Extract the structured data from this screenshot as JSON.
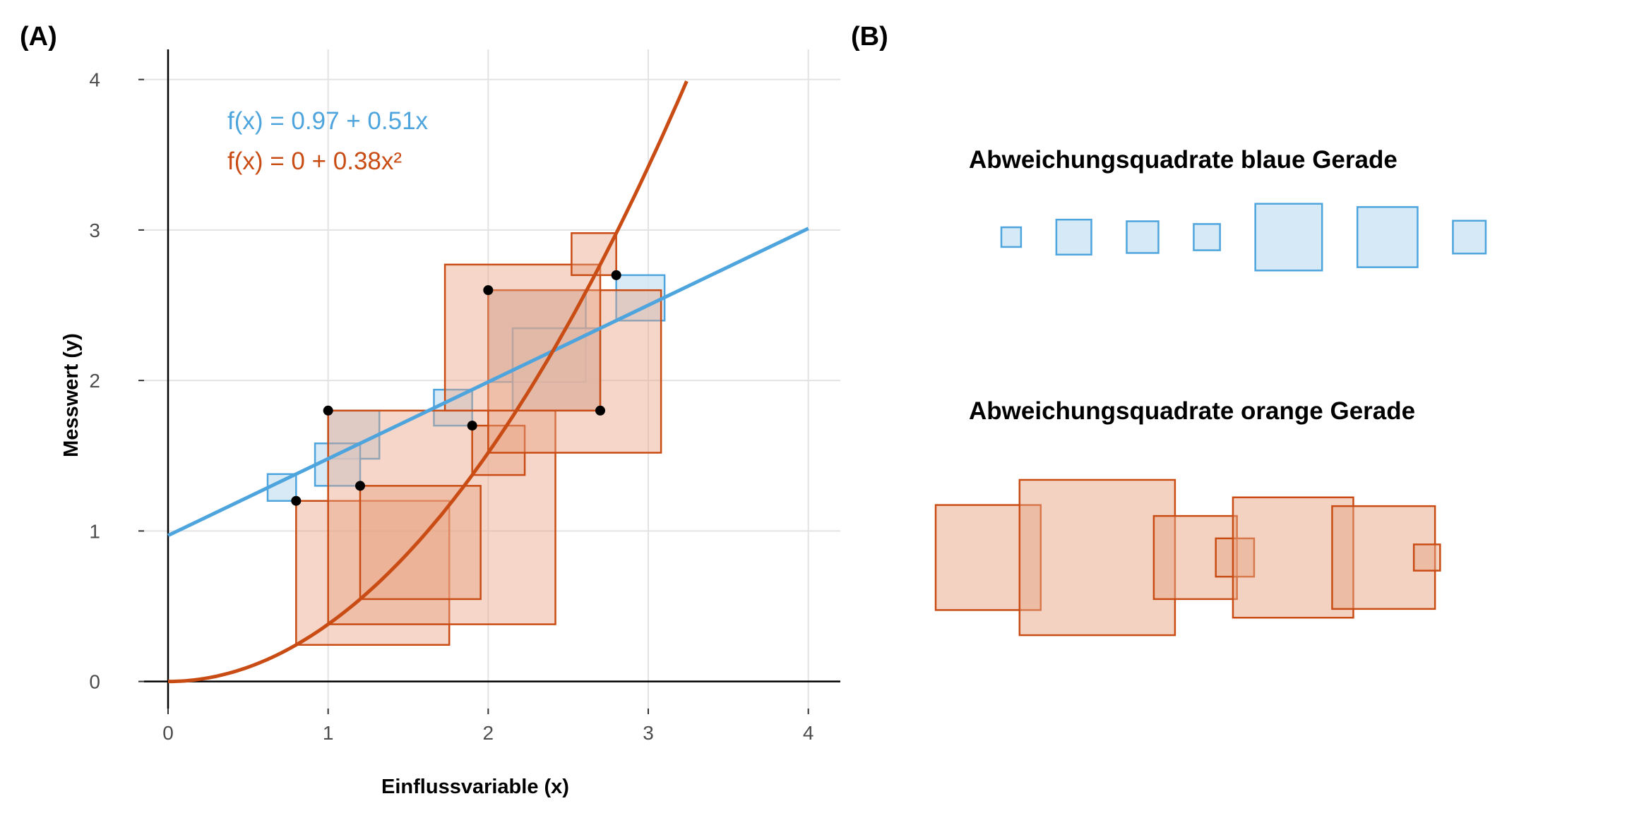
{
  "panels": {
    "a_label": "(A)",
    "b_label": "(B)"
  },
  "colors": {
    "blue": "#4ea4dd",
    "blue_fill": "#cfe5f5",
    "orange": "#c94c14",
    "orange_fill": "#e8a585",
    "grid": "#e3e3e3",
    "axis": "#000000",
    "point": "#000000"
  },
  "chart_data": [
    {
      "type": "scatter",
      "panel": "A",
      "title": "",
      "xlabel": "Einflussvariable (x)",
      "ylabel": "Messwert (y)",
      "xlim": [
        -0.15,
        4.2
      ],
      "ylim": [
        -0.18,
        4.2
      ],
      "x_ticks": [
        0,
        1,
        2,
        3,
        4
      ],
      "y_ticks": [
        0,
        1,
        2,
        3,
        4
      ],
      "grid": true,
      "points": {
        "x": [
          0.8,
          1.0,
          1.2,
          1.9,
          2.0,
          2.7,
          2.8
        ],
        "y": [
          1.2,
          1.8,
          1.3,
          1.7,
          2.6,
          1.8,
          2.7
        ]
      },
      "lines": [
        {
          "name": "blue",
          "equation_label": "f(x) = 0.97 + 0.51x",
          "intercept": 0.97,
          "slope": 0.51,
          "x_range": [
            0,
            4
          ]
        },
        {
          "name": "orange",
          "equation_label": "f(x) = 0 + 0.38x²",
          "a": 0,
          "b": 0.38,
          "x_range": [
            0,
            3.24
          ]
        }
      ],
      "squares": "one square per point for each fit, side = |y - f(x)|, drawn between the point and the fitted curve"
    },
    {
      "type": "bar",
      "panel": "B",
      "series": [
        {
          "name": "blue",
          "title": "Abweichungsquadrate blaue Gerade",
          "residuals": [
            0.18,
            0.32,
            0.29,
            0.24,
            0.61,
            0.55,
            0.3
          ]
        },
        {
          "name": "orange",
          "title": "Abweichungsquadrate orange Gerade",
          "residuals": [
            0.96,
            1.42,
            0.76,
            0.35,
            1.1,
            0.94,
            0.24
          ]
        }
      ]
    }
  ]
}
